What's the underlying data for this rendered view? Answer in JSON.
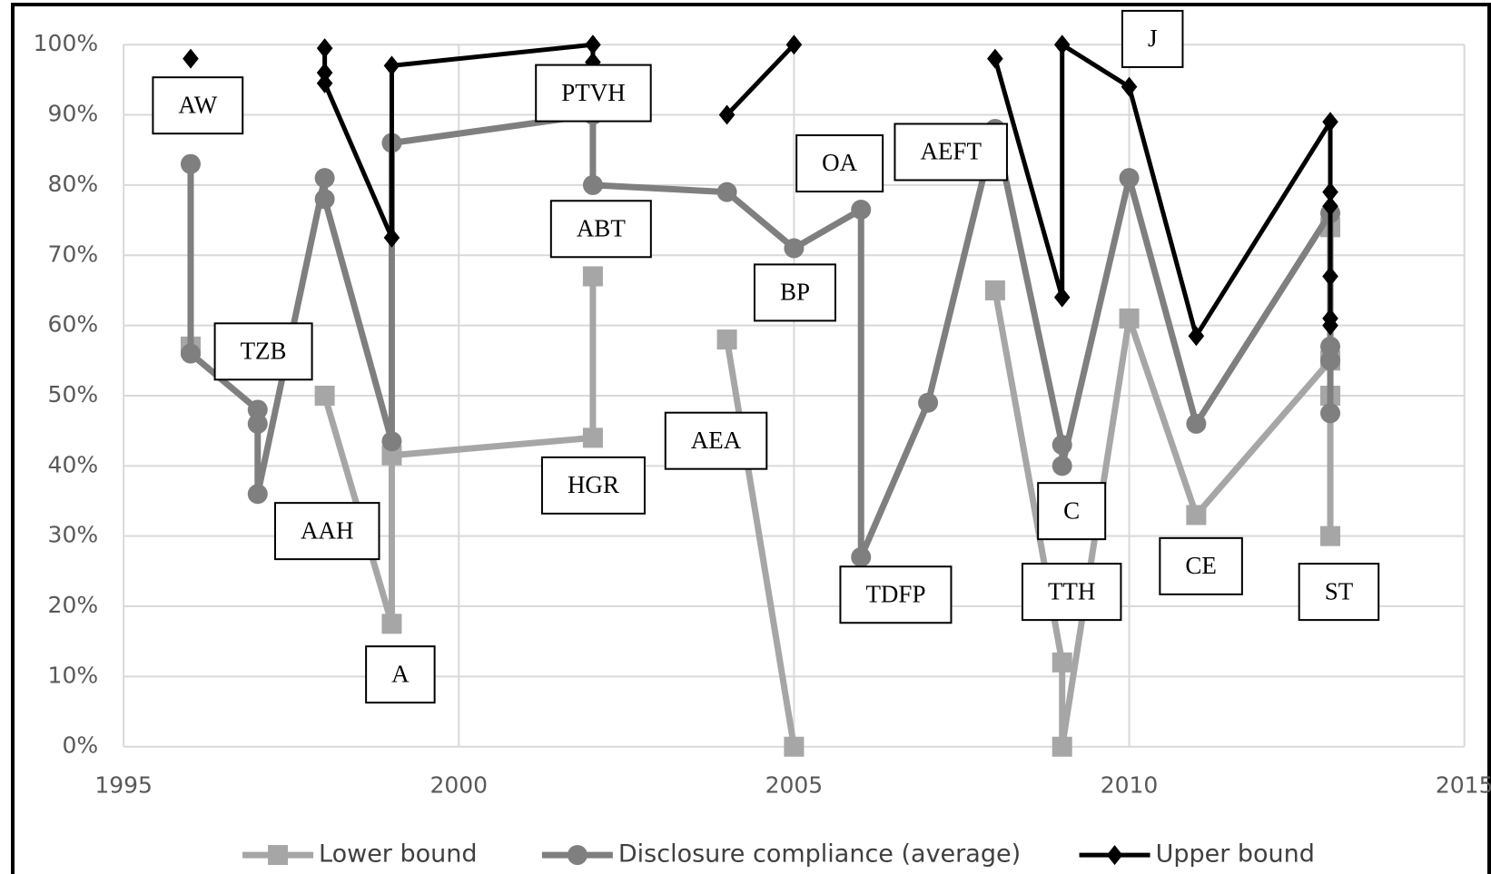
{
  "chart_data": {
    "type": "line",
    "xlim": [
      1995,
      2015
    ],
    "xticks": [
      1995,
      2000,
      2005,
      2010,
      2015
    ],
    "ylim": [
      0,
      100
    ],
    "yticks": [
      {
        "value": 0,
        "label": "0%"
      },
      {
        "value": 10,
        "label": "10%"
      },
      {
        "value": 20,
        "label": "20%"
      },
      {
        "value": 30,
        "label": "30%"
      },
      {
        "value": 40,
        "label": "40%"
      },
      {
        "value": 50,
        "label": "50%"
      },
      {
        "value": 60,
        "label": "60%"
      },
      {
        "value": 70,
        "label": "70%"
      },
      {
        "value": 80,
        "label": "80%"
      },
      {
        "value": 90,
        "label": "90%"
      },
      {
        "value": 100,
        "label": "100%"
      }
    ],
    "grid": true,
    "legend": "bottom",
    "series": [
      {
        "name": "Lower bound",
        "color": "#a6a6a6",
        "marker": "square",
        "x": [
          1996,
          1998,
          1998,
          1999,
          1999,
          2002,
          2002,
          2004,
          2004,
          2005,
          2008,
          2008,
          2009,
          2009,
          2010,
          2011,
          2013,
          2013,
          2013,
          2013
        ],
        "values": [
          57,
          null,
          50,
          17.5,
          41.5,
          44,
          67,
          null,
          58,
          0,
          null,
          65,
          12,
          0,
          61,
          33,
          55,
          74,
          50,
          30
        ]
      },
      {
        "name": "Disclosure compliance (average)",
        "color": "#7f7f7f",
        "marker": "circle",
        "x": [
          1996,
          1996,
          1997,
          1997,
          1997,
          1998,
          1998,
          1999,
          1999,
          2002,
          2002,
          2004,
          2005,
          2006,
          2006,
          2007,
          2008,
          2009,
          2009,
          2010,
          2011,
          2013,
          2013,
          2013,
          2013
        ],
        "values": [
          83,
          56,
          48,
          46,
          36,
          81,
          78,
          43.5,
          86,
          90,
          80,
          79,
          71,
          76.5,
          27,
          49,
          88,
          43,
          40,
          81,
          46,
          76,
          57,
          55,
          47.5
        ]
      },
      {
        "name": "Upper bound",
        "color": "#000000",
        "marker": "diamond",
        "x": [
          1996,
          1998,
          1998,
          1998,
          1998,
          1999,
          1999,
          2002,
          2002,
          2004,
          2004,
          2005,
          2008,
          2008,
          2009,
          2009,
          2010,
          2011,
          2013,
          2013,
          2013,
          2013,
          2013,
          2013
        ],
        "values": [
          98,
          null,
          99.5,
          96,
          94.5,
          72.5,
          97,
          100,
          97.5,
          null,
          90,
          100,
          null,
          98,
          64,
          100,
          94,
          58.5,
          89,
          79,
          77,
          67,
          61,
          60
        ]
      }
    ],
    "annotations": [
      "AW",
      "TZB",
      "AAH",
      "A",
      "PTVH",
      "ABT",
      "HGR",
      "AEA",
      "OA",
      "BP",
      "AEFT",
      "TDFP",
      "J",
      "C",
      "TTH",
      "CE",
      "ST"
    ]
  }
}
